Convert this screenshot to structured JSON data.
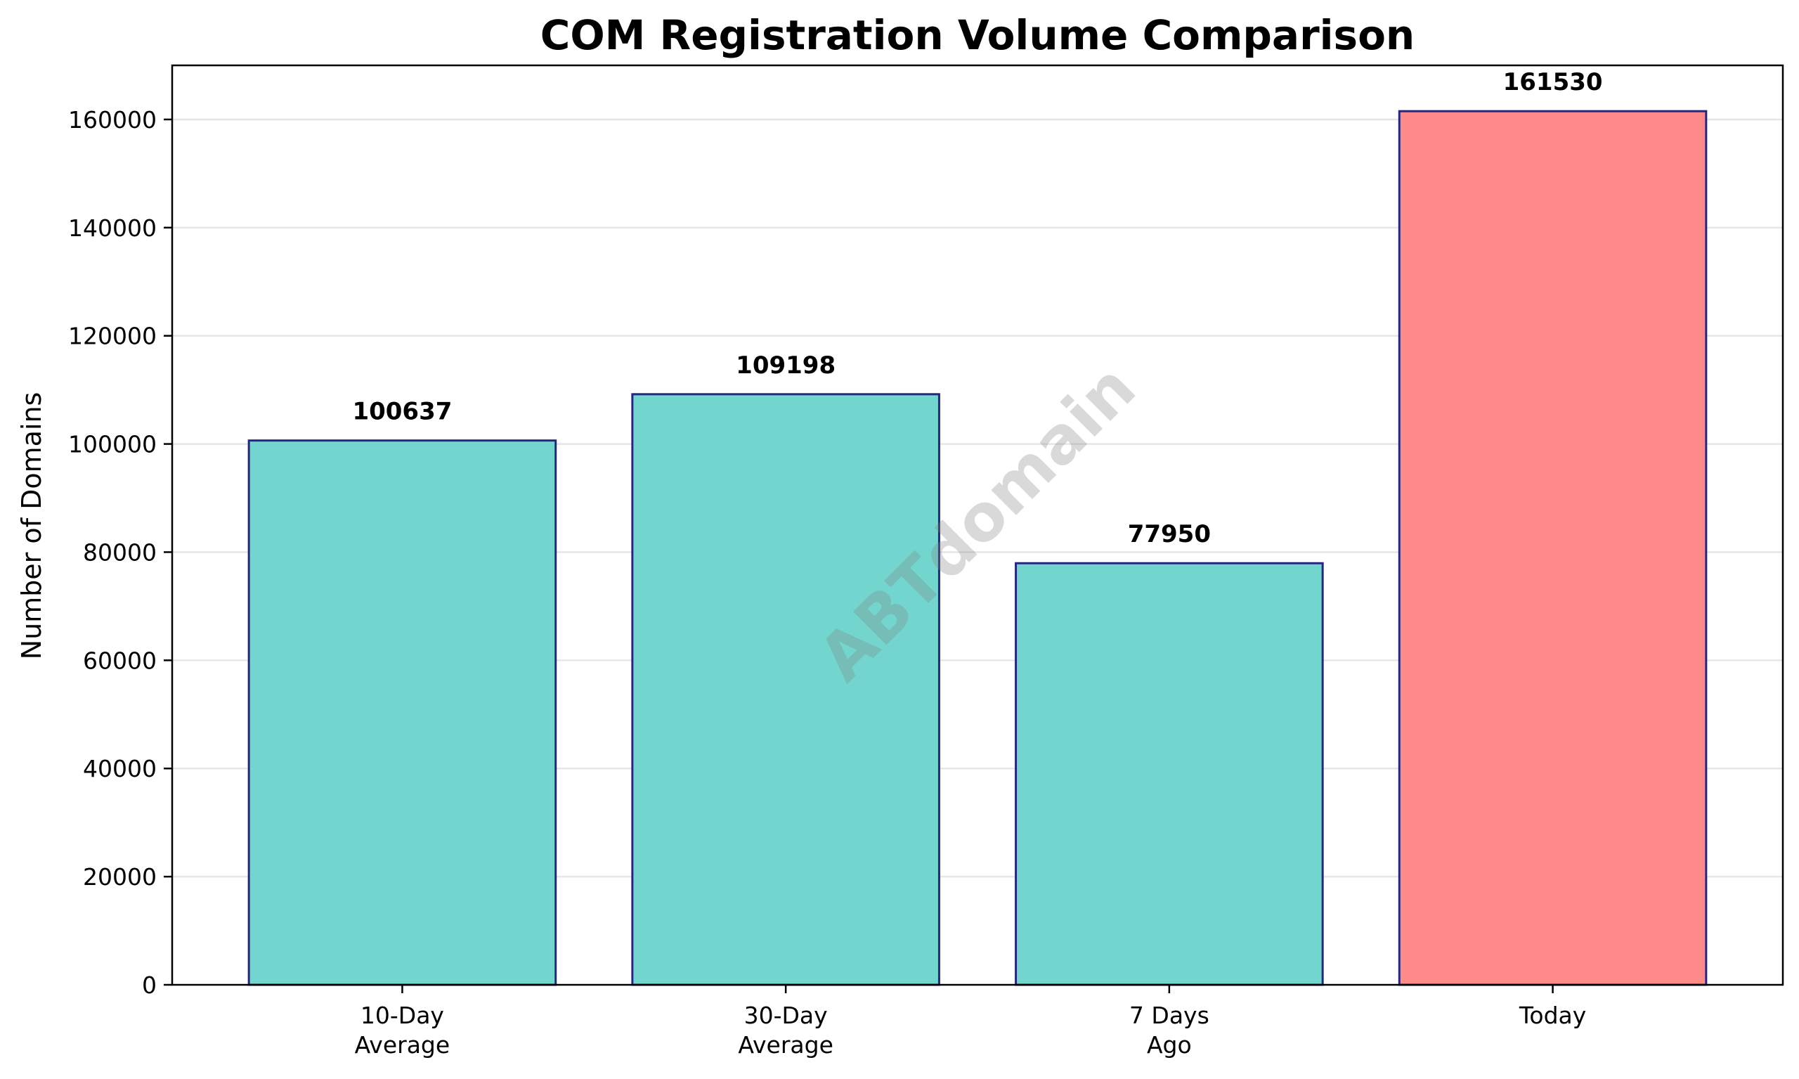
{
  "chart_data": {
    "type": "bar",
    "title": "COM Registration Volume Comparison",
    "xlabel": "",
    "ylabel": "Number of Domains",
    "categories": [
      [
        "10-Day",
        "Average"
      ],
      [
        "30-Day",
        "Average"
      ],
      [
        "7 Days",
        "Ago"
      ],
      [
        "Today"
      ]
    ],
    "values": [
      100637,
      109198,
      77950,
      161530
    ],
    "value_labels": [
      "100637",
      "109198",
      "77950",
      "161530"
    ],
    "ylim": [
      0,
      170000
    ],
    "yticks": [
      0,
      20000,
      40000,
      60000,
      80000,
      100000,
      120000,
      140000,
      160000
    ],
    "ytick_labels": [
      "0",
      "20000",
      "40000",
      "60000",
      "80000",
      "100000",
      "120000",
      "140000",
      "160000"
    ],
    "grid": "y",
    "bar_colors": [
      "#72d6cf",
      "#72d6cf",
      "#72d6cf",
      "#ff8a8a"
    ],
    "bar_edge_color": "#262680",
    "grid_color": "#e6e6e6",
    "watermark": "ABTdomain"
  }
}
